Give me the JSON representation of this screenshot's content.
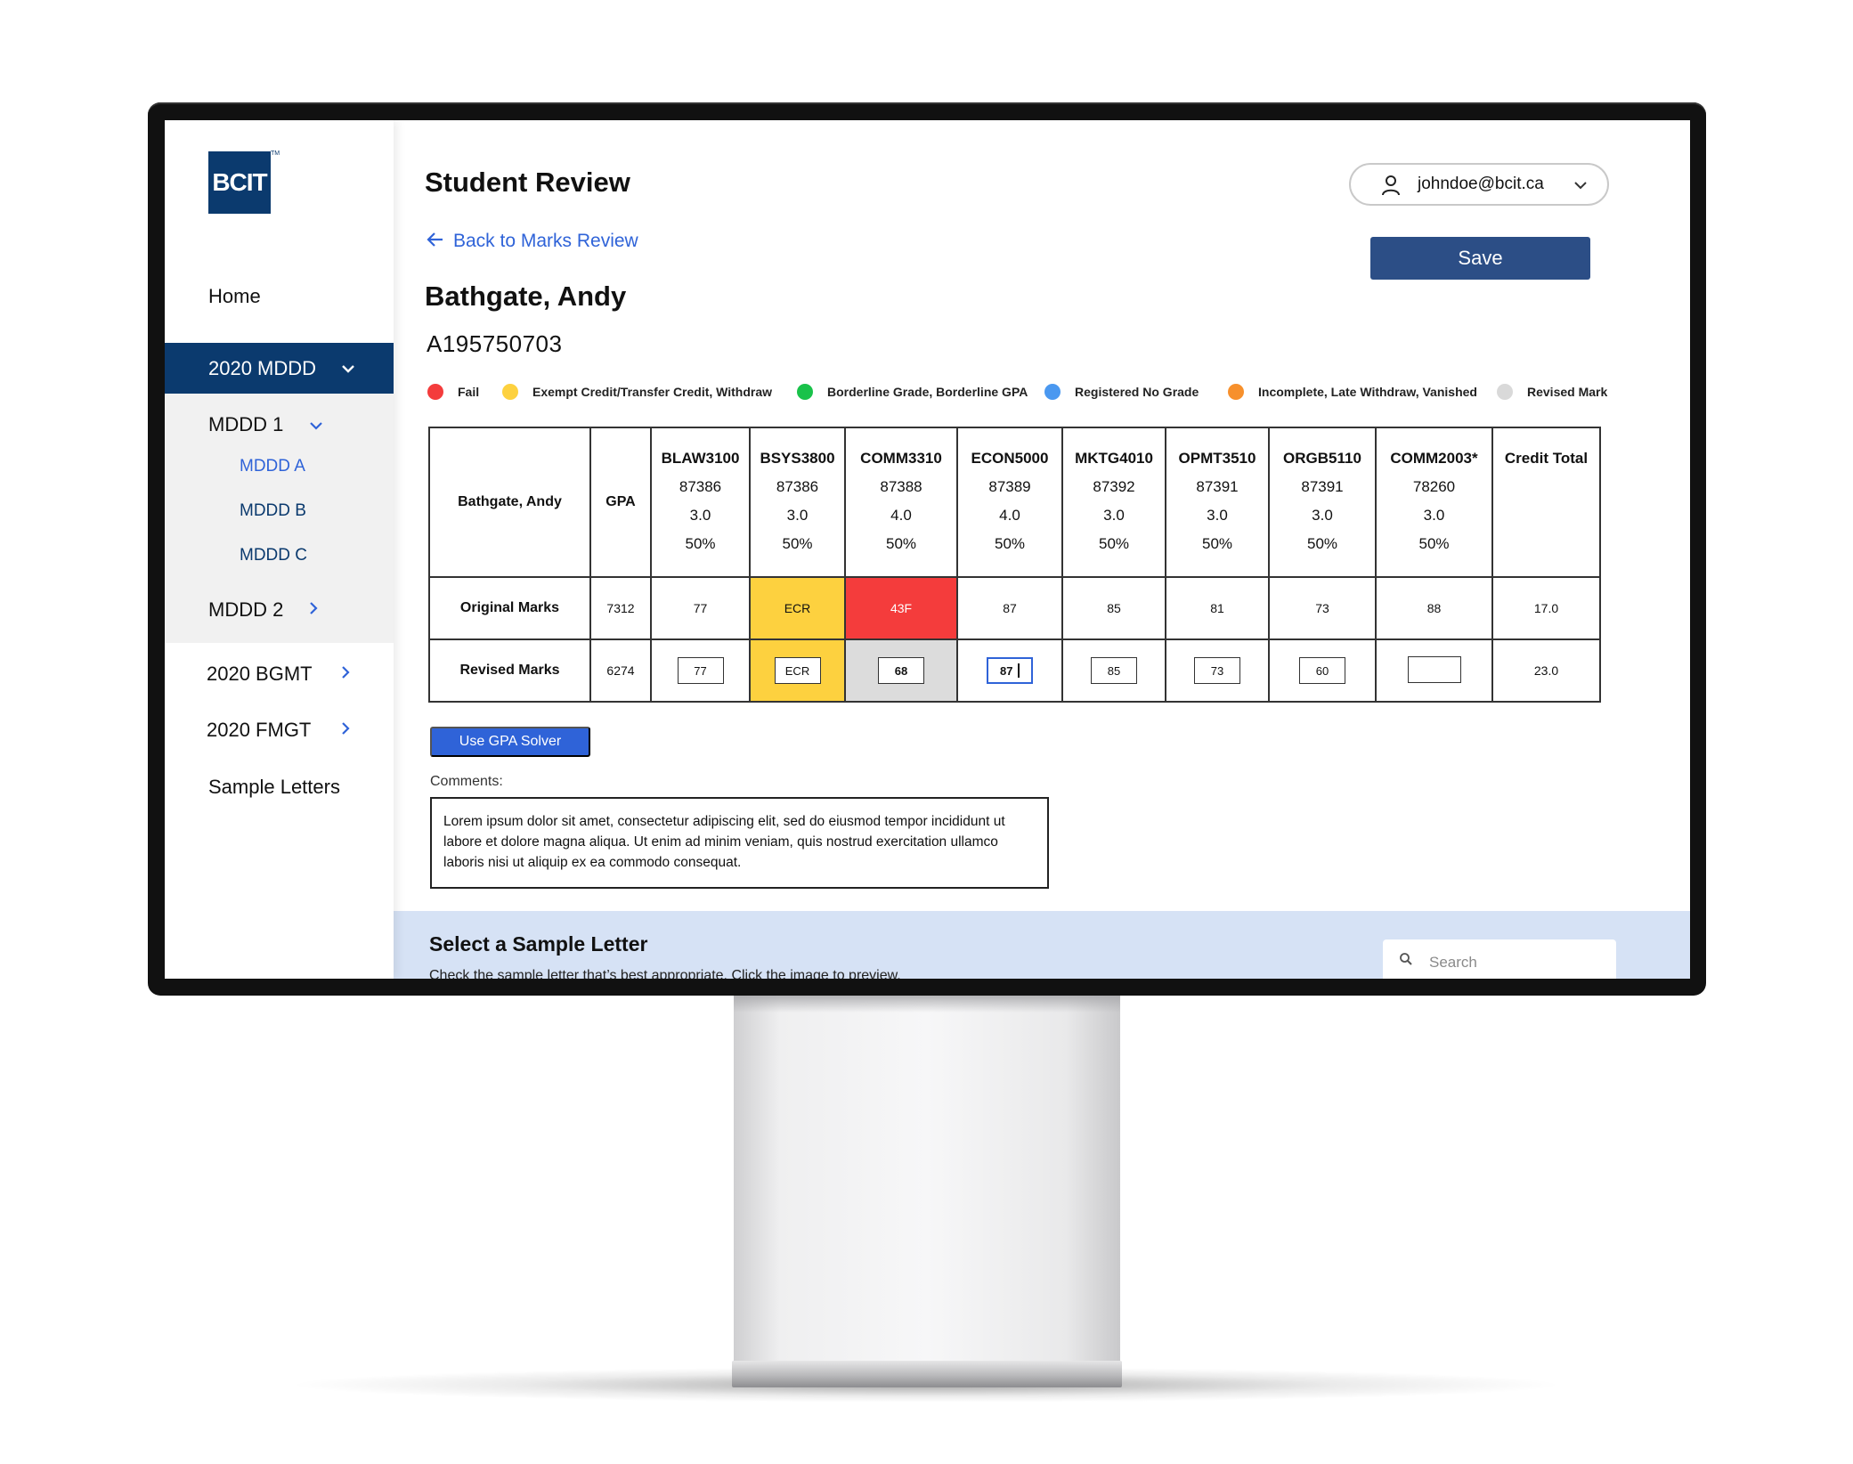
{
  "brand": {
    "logo_text": "BCIT",
    "trademark": "TM",
    "color": "#0b3a6e"
  },
  "sidebar": {
    "items": [
      {
        "label": "Home"
      },
      {
        "label": "2020 MDDD",
        "icon": "chevron-down-icon",
        "active": true
      },
      {
        "label": "MDDD 1",
        "icon": "chevron-down-icon"
      },
      {
        "label": "MDDD A"
      },
      {
        "label": "MDDD B"
      },
      {
        "label": "MDDD C"
      },
      {
        "label": "MDDD 2",
        "icon": "chevron-right-icon"
      },
      {
        "label": "2020 BGMT",
        "icon": "chevron-right-icon"
      },
      {
        "label": "2020 FMGT",
        "icon": "chevron-right-icon"
      },
      {
        "label": "Sample Letters"
      }
    ]
  },
  "header": {
    "title": "Student Review",
    "back_link": "Back to Marks Review",
    "user_email": "johndoe@bcit.ca",
    "save_label": "Save"
  },
  "student": {
    "name": "Bathgate, Andy",
    "id": "A195750703"
  },
  "legend": [
    {
      "label": "Fail",
      "color": "#f43c3c"
    },
    {
      "label": "Exempt Credit/Transfer Credit, Withdraw",
      "color": "#fdd13f"
    },
    {
      "label": "Borderline Grade, Borderline GPA",
      "color": "#19c24a"
    },
    {
      "label": "Registered No Grade",
      "color": "#4a98f0"
    },
    {
      "label": "Incomplete, Late Withdraw, Vanished",
      "color": "#f7902c"
    },
    {
      "label": "Revised Mark",
      "color": "#d9d9d9"
    }
  ],
  "table": {
    "name_header": "Bathgate, Andy",
    "gpa_header": "GPA",
    "credit_header": "Credit Total",
    "courses": [
      {
        "code": "BLAW3100",
        "crn": "87386",
        "credits": "3.0",
        "weight": "50%"
      },
      {
        "code": "BSYS3800",
        "crn": "87386",
        "credits": "3.0",
        "weight": "50%"
      },
      {
        "code": "COMM3310",
        "crn": "87388",
        "credits": "4.0",
        "weight": "50%"
      },
      {
        "code": "ECON5000",
        "crn": "87389",
        "credits": "4.0",
        "weight": "50%"
      },
      {
        "code": "MKTG4010",
        "crn": "87392",
        "credits": "3.0",
        "weight": "50%"
      },
      {
        "code": "OPMT3510",
        "crn": "87391",
        "credits": "3.0",
        "weight": "50%"
      },
      {
        "code": "ORGB5110",
        "crn": "87391",
        "credits": "3.0",
        "weight": "50%"
      },
      {
        "code": "COMM2003*",
        "crn": "78260",
        "credits": "3.0",
        "weight": "50%"
      }
    ],
    "original": {
      "label": "Original Marks",
      "gpa": "7312",
      "marks": [
        "77",
        "ECR",
        "43F",
        "87",
        "85",
        "81",
        "73",
        "88"
      ],
      "credit_total": "17.0"
    },
    "revised": {
      "label": "Revised Marks",
      "gpa": "6274",
      "marks": [
        "77",
        "ECR",
        "68",
        "87",
        "85",
        "73",
        "60",
        ""
      ],
      "credit_total": "23.0"
    }
  },
  "actions": {
    "gpa_solver_label": "Use GPA Solver"
  },
  "comments": {
    "label": "Comments:",
    "text": "Lorem ipsum dolor sit amet, consectetur adipiscing elit, sed do eiusmod tempor incididunt ut labore et dolore magna aliqua. Ut enim ad minim veniam, quis nostrud exercitation ullamco laboris nisi ut aliquip ex ea commodo consequat."
  },
  "letters": {
    "title": "Select a Sample Letter",
    "subtitle": "Check the sample letter that’s best appropriate. Click the image to preview.",
    "search_placeholder": "Search",
    "search_icon": "search-icon"
  }
}
